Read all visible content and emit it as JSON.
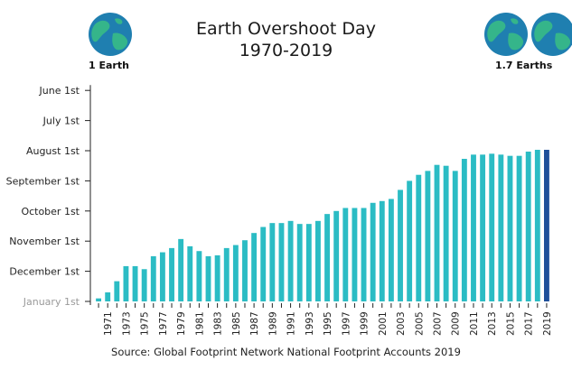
{
  "header": {
    "title_line1": "Earth Overshoot Day",
    "title_line2": "1970-2019",
    "left_badge": "1 Earth",
    "right_badge": "1.7 Earths"
  },
  "footer": {
    "source": "Source: Global Footprint Network National Footprint Accounts 2019"
  },
  "colors": {
    "bar": "#2bbcc4",
    "bar_last": "#1e4f9a",
    "globe_ocean": "#1f7fb0",
    "globe_land": "#35b58a",
    "axis": "#222222"
  },
  "chart_data": {
    "type": "bar",
    "title": "Earth Overshoot Day 1970-2019",
    "y_axis_labels": [
      "January 1st",
      "December 1st",
      "November 1st",
      "October 1st",
      "September 1st",
      "August 1st",
      "July 1st",
      "June 1st"
    ],
    "y_axis_values": [
      0,
      1,
      2,
      3,
      4,
      5,
      6,
      7
    ],
    "ylim": [
      0,
      7.2
    ],
    "y_unit": "months of overshoot before January 1st (0 = January 1st, 1 = December 1st, 5 = August 1st)",
    "x_tick_labels": [
      "1971",
      "1973",
      "1975",
      "1977",
      "1979",
      "1981",
      "1983",
      "1985",
      "1987",
      "1989",
      "1991",
      "1993",
      "1995",
      "1997",
      "1999",
      "2001",
      "2003",
      "2005",
      "2007",
      "2009",
      "2011",
      "2013",
      "2015",
      "2017",
      "2019"
    ],
    "categories": [
      "1970",
      "1971",
      "1972",
      "1973",
      "1974",
      "1975",
      "1976",
      "1977",
      "1978",
      "1979",
      "1980",
      "1981",
      "1982",
      "1983",
      "1984",
      "1985",
      "1986",
      "1987",
      "1988",
      "1989",
      "1990",
      "1991",
      "1992",
      "1993",
      "1994",
      "1995",
      "1996",
      "1997",
      "1998",
      "1999",
      "2000",
      "2001",
      "2002",
      "2003",
      "2004",
      "2005",
      "2006",
      "2007",
      "2008",
      "2009",
      "2010",
      "2011",
      "2012",
      "2013",
      "2014",
      "2015",
      "2016",
      "2017",
      "2018",
      "2019"
    ],
    "values": [
      0.1,
      0.3,
      0.67,
      1.17,
      1.17,
      1.07,
      1.5,
      1.63,
      1.77,
      2.07,
      1.83,
      1.67,
      1.5,
      1.53,
      1.77,
      1.87,
      2.03,
      2.27,
      2.47,
      2.6,
      2.6,
      2.67,
      2.57,
      2.57,
      2.67,
      2.9,
      3.0,
      3.1,
      3.1,
      3.1,
      3.27,
      3.33,
      3.4,
      3.7,
      4.0,
      4.2,
      4.33,
      4.53,
      4.5,
      4.33,
      4.73,
      4.87,
      4.87,
      4.9,
      4.87,
      4.83,
      4.83,
      4.97,
      5.03,
      5.03
    ],
    "highlight_last": true,
    "grid": false
  }
}
